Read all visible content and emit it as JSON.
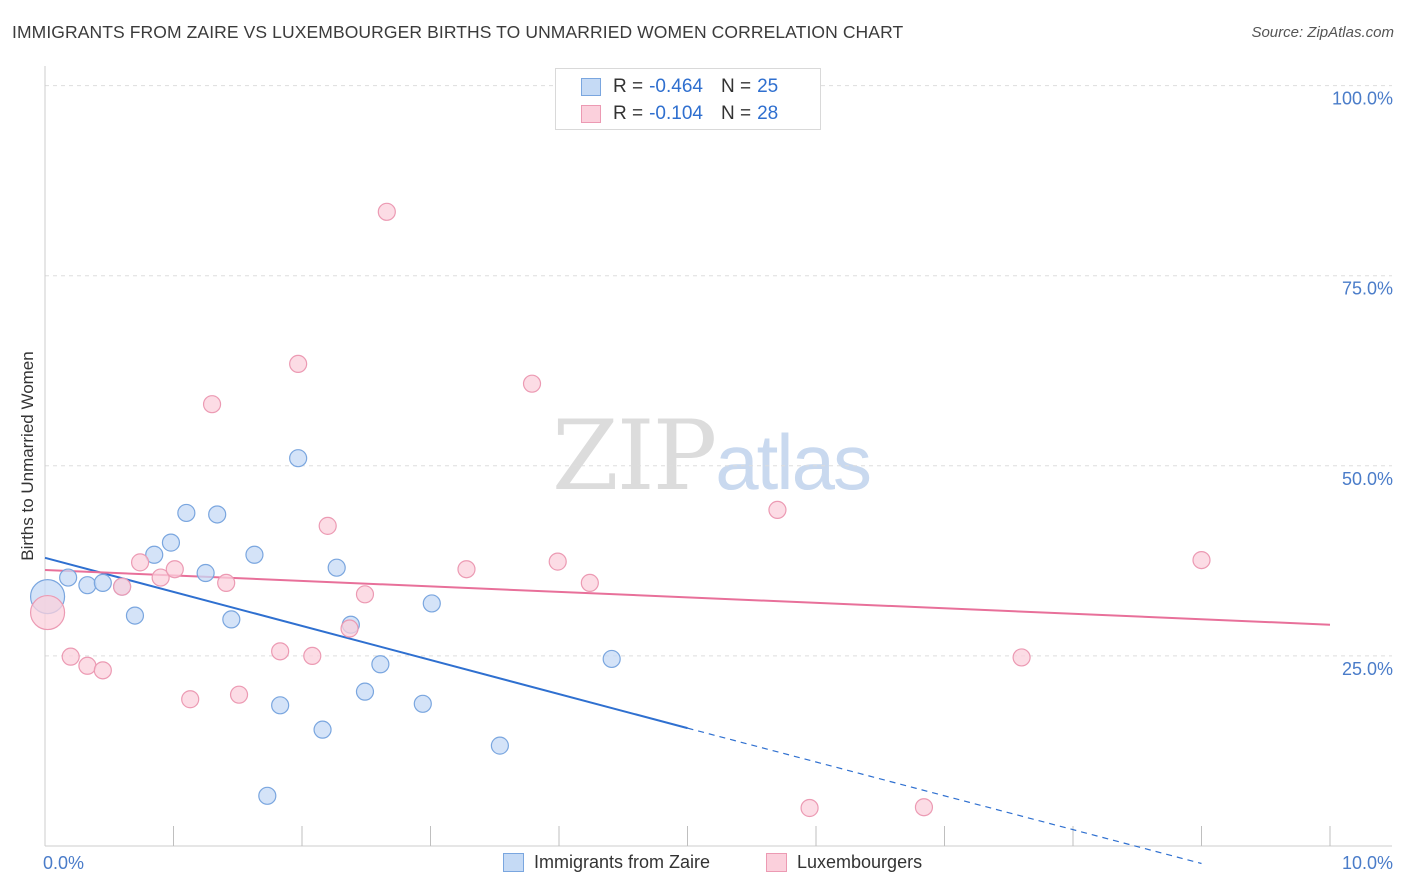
{
  "header": {
    "title": "IMMIGRANTS FROM ZAIRE VS LUXEMBOURGER BIRTHS TO UNMARRIED WOMEN CORRELATION CHART",
    "source": "Source: ZipAtlas.com"
  },
  "watermark": {
    "zip": "ZIP",
    "atlas": "atlas"
  },
  "legend": {
    "rows": [
      {
        "r_label": "R =",
        "r_value": "-0.464",
        "n_label": "N =",
        "n_value": "25"
      },
      {
        "r_label": "R =",
        "r_value": "-0.104",
        "n_label": "N =",
        "n_value": "28"
      }
    ]
  },
  "bottom_legend": {
    "items": [
      {
        "label": "Immigrants from Zaire"
      },
      {
        "label": "Luxembourgers"
      }
    ]
  },
  "chart_data": {
    "type": "scatter",
    "title": "IMMIGRANTS FROM ZAIRE VS LUXEMBOURGER BIRTHS TO UNMARRIED WOMEN CORRELATION CHART",
    "xlabel": "",
    "ylabel": "Births to Unmarried Women",
    "xlim": [
      0,
      10
    ],
    "ylim": [
      0,
      101
    ],
    "x_tick_labels": [
      "0.0%",
      "10.0%"
    ],
    "y_ticks": [
      25,
      50,
      75,
      100
    ],
    "y_tick_labels": [
      "25.0%",
      "50.0%",
      "75.0%",
      "100.0%"
    ],
    "grid": true,
    "legend_placement": "top-center",
    "colors": {
      "zaire_fill": "#c5daf5",
      "zaire_stroke": "#7aa6df",
      "zaire_line": "#2f70d0",
      "lux_fill": "#fbd0dc",
      "lux_stroke": "#ec9ab3",
      "lux_line": "#e8709a",
      "tick_text": "#4a7cc9",
      "grid": "#dddddd"
    },
    "series": [
      {
        "name": "Immigrants from Zaire",
        "points": [
          {
            "x": 0.02,
            "y": 32.8,
            "large": true
          },
          {
            "x": 0.18,
            "y": 35.3
          },
          {
            "x": 0.33,
            "y": 34.3
          },
          {
            "x": 0.45,
            "y": 34.6
          },
          {
            "x": 0.6,
            "y": 34.1
          },
          {
            "x": 0.7,
            "y": 30.3
          },
          {
            "x": 0.85,
            "y": 38.3
          },
          {
            "x": 0.98,
            "y": 39.9
          },
          {
            "x": 1.1,
            "y": 43.8
          },
          {
            "x": 1.25,
            "y": 35.9
          },
          {
            "x": 1.34,
            "y": 43.6
          },
          {
            "x": 1.45,
            "y": 29.8
          },
          {
            "x": 1.63,
            "y": 38.3
          },
          {
            "x": 1.73,
            "y": 6.6
          },
          {
            "x": 1.83,
            "y": 18.5
          },
          {
            "x": 1.97,
            "y": 51.0
          },
          {
            "x": 2.16,
            "y": 15.3
          },
          {
            "x": 2.27,
            "y": 36.6
          },
          {
            "x": 2.38,
            "y": 29.1
          },
          {
            "x": 2.49,
            "y": 20.3
          },
          {
            "x": 2.61,
            "y": 23.9
          },
          {
            "x": 2.94,
            "y": 18.7
          },
          {
            "x": 3.01,
            "y": 31.9
          },
          {
            "x": 3.54,
            "y": 13.2
          },
          {
            "x": 4.41,
            "y": 24.6
          }
        ],
        "trend": {
          "x0": 0,
          "y0": 37.9,
          "x1": 5.0,
          "y1": 15.5,
          "dash_x1": 9.0,
          "dash_y1": -2.3
        }
      },
      {
        "name": "Luxembourgers",
        "points": [
          {
            "x": 0.02,
            "y": 30.7,
            "large": true
          },
          {
            "x": 0.2,
            "y": 24.9
          },
          {
            "x": 0.33,
            "y": 23.7
          },
          {
            "x": 0.45,
            "y": 23.1
          },
          {
            "x": 0.6,
            "y": 34.1
          },
          {
            "x": 0.74,
            "y": 37.3
          },
          {
            "x": 0.9,
            "y": 35.3
          },
          {
            "x": 1.01,
            "y": 36.4
          },
          {
            "x": 1.13,
            "y": 19.3
          },
          {
            "x": 1.3,
            "y": 58.1
          },
          {
            "x": 1.41,
            "y": 34.6
          },
          {
            "x": 1.51,
            "y": 19.9
          },
          {
            "x": 1.83,
            "y": 25.6
          },
          {
            "x": 1.97,
            "y": 63.4
          },
          {
            "x": 2.08,
            "y": 25.0
          },
          {
            "x": 2.2,
            "y": 42.1
          },
          {
            "x": 2.37,
            "y": 28.6
          },
          {
            "x": 2.49,
            "y": 33.1
          },
          {
            "x": 2.66,
            "y": 83.4
          },
          {
            "x": 3.28,
            "y": 36.4
          },
          {
            "x": 3.79,
            "y": 60.8
          },
          {
            "x": 3.99,
            "y": 37.4
          },
          {
            "x": 4.24,
            "y": 34.6
          },
          {
            "x": 5.7,
            "y": 44.2
          },
          {
            "x": 5.95,
            "y": 5.0
          },
          {
            "x": 6.84,
            "y": 5.1
          },
          {
            "x": 7.6,
            "y": 24.8
          },
          {
            "x": 9.0,
            "y": 37.6
          }
        ],
        "trend": {
          "x0": 0,
          "y0": 36.3,
          "x1": 10.0,
          "y1": 29.1
        }
      }
    ]
  }
}
